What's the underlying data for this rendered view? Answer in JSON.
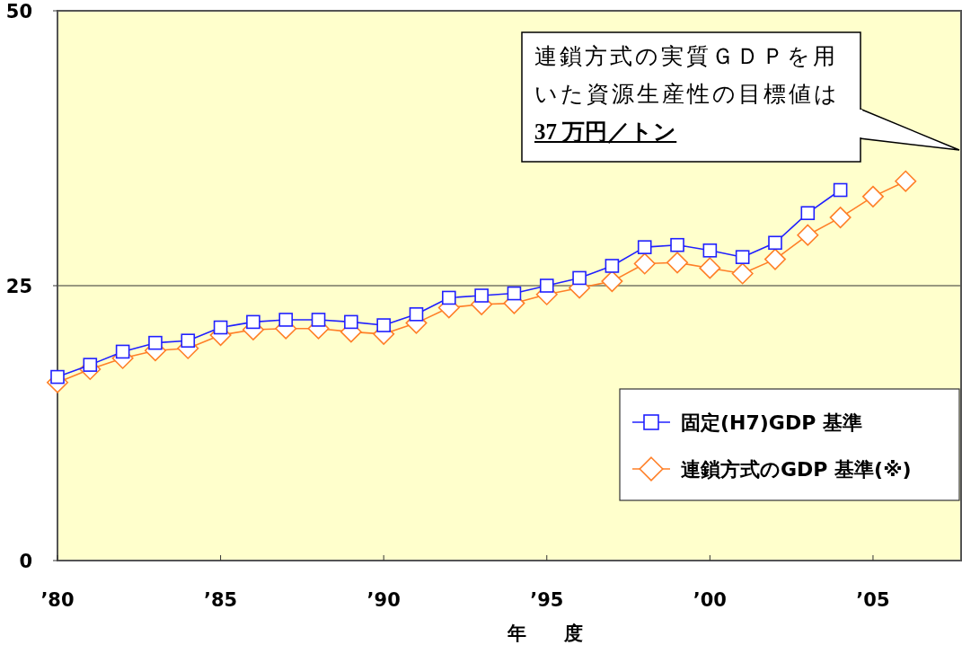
{
  "chart_data": {
    "type": "line",
    "xlabel": "年　　度",
    "x": [
      1980,
      1981,
      1982,
      1983,
      1984,
      1985,
      1986,
      1987,
      1988,
      1989,
      1990,
      1991,
      1992,
      1993,
      1994,
      1995,
      1996,
      1997,
      1998,
      1999,
      2000,
      2001,
      2002,
      2003,
      2004,
      2005,
      2006
    ],
    "series": [
      {
        "name": "固定(H7)GDP 基準",
        "color": "#2020ff",
        "marker": "square",
        "values": [
          16.7,
          17.8,
          19.0,
          19.8,
          20.0,
          21.2,
          21.7,
          21.9,
          21.9,
          21.7,
          21.4,
          22.4,
          23.9,
          24.1,
          24.3,
          25.0,
          25.7,
          26.8,
          28.5,
          28.7,
          28.2,
          27.6,
          28.9,
          31.6,
          33.7,
          null,
          null
        ]
      },
      {
        "name": "連鎖方式のGDP 基準(※)",
        "color": "#ff7f27",
        "marker": "diamond",
        "values": [
          16.2,
          17.4,
          18.4,
          19.1,
          19.3,
          20.5,
          21.0,
          21.1,
          21.1,
          20.8,
          20.6,
          21.6,
          23.0,
          23.3,
          23.4,
          24.2,
          24.8,
          25.4,
          27.0,
          27.1,
          26.6,
          26.1,
          27.4,
          29.6,
          31.2,
          33.1,
          34.5
        ]
      }
    ],
    "xlim": [
      1980,
      2007.7
    ],
    "xticks": [
      {
        "value": 1980,
        "label": "’80"
      },
      {
        "value": 1985,
        "label": "’85"
      },
      {
        "value": 1990,
        "label": "’90"
      },
      {
        "value": 1995,
        "label": "’95"
      },
      {
        "value": 2000,
        "label": "’00"
      },
      {
        "value": 2005,
        "label": "’05"
      }
    ],
    "ylim": [
      0,
      50
    ],
    "yticks": [
      0,
      25,
      50
    ],
    "grid": "y",
    "legend": "bottom right",
    "annotations": [
      "連鎖方式の実質ＧＤＰを用いた資源生産性の目標値は",
      "37 万円／トン"
    ]
  }
}
